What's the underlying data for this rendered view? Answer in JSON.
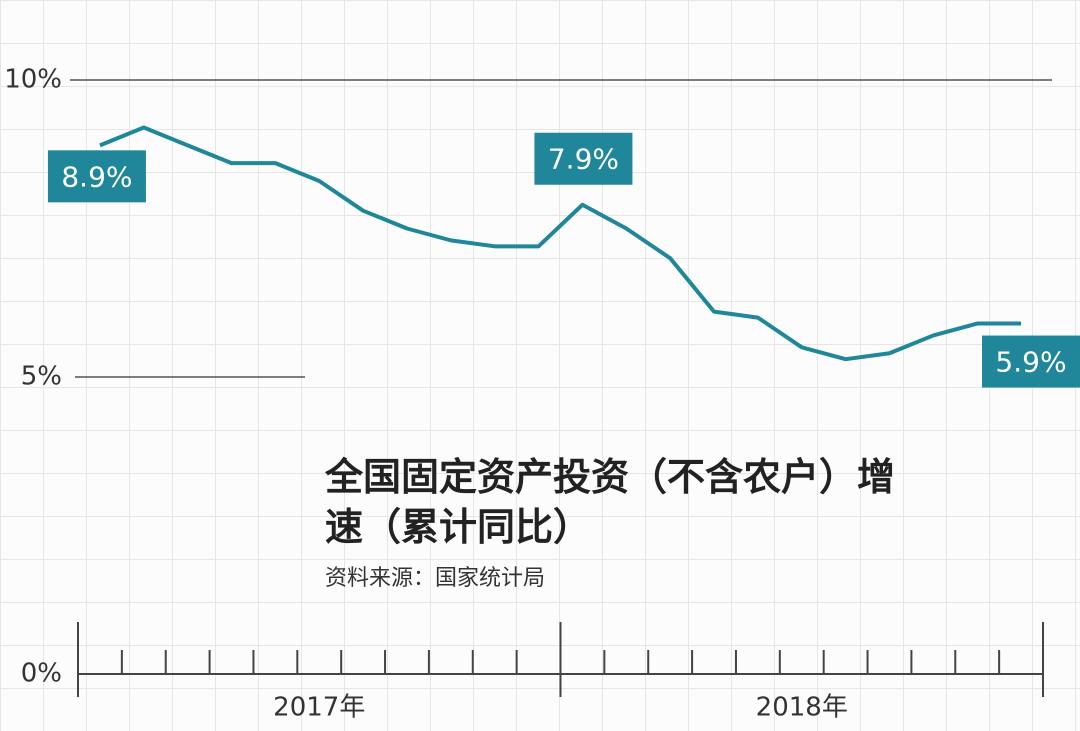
{
  "chart_data": {
    "type": "line",
    "title": "全国固定资产投资（不含农户）增速（累计同比）",
    "source": "资料来源：国家统计局",
    "categories": [
      null,
      null,
      null,
      null,
      null,
      null,
      null,
      null,
      null,
      null,
      null,
      null,
      null,
      null,
      null,
      null,
      null,
      null,
      null,
      null,
      null,
      null
    ],
    "x_groups": [
      "2017年",
      "2018年"
    ],
    "series": [
      {
        "color": "#1f8799",
        "values": [
          8.9,
          9.2,
          8.9,
          8.6,
          8.6,
          8.3,
          7.8,
          7.5,
          7.3,
          7.2,
          7.2,
          7.9,
          7.5,
          7.0,
          6.1,
          6.0,
          5.5,
          5.3,
          5.4,
          5.7,
          5.9,
          5.9
        ],
        "value_labels": [
          "8.9%",
          null,
          null,
          null,
          null,
          null,
          null,
          null,
          null,
          null,
          null,
          "7.9%",
          null,
          null,
          null,
          null,
          null,
          null,
          null,
          null,
          null,
          "5.9%"
        ]
      }
    ],
    "ylim": [
      0,
      10
    ],
    "yticks": [
      {
        "value": 0,
        "label": "0%"
      },
      {
        "value": 5,
        "label": "5%"
      },
      {
        "value": 10,
        "label": "10%"
      }
    ]
  }
}
